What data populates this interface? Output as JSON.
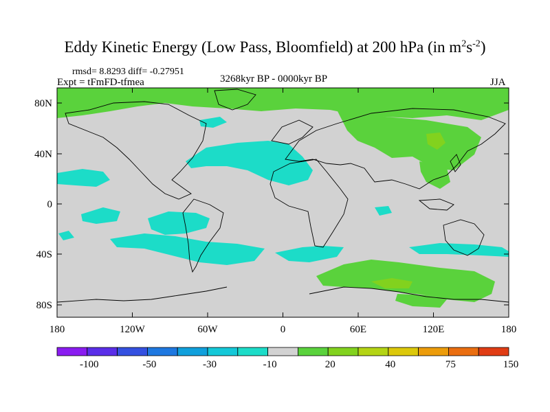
{
  "title": {
    "main": "Eddy Kinetic Energy (Low Pass, Bloomfield) at 200 hPa (in m",
    "sup1": "2",
    "s": "s",
    "sup2": "-2",
    "close": ")"
  },
  "stats": "rmsd= 8.8293 diff= -0.27951",
  "expt": "Expt = tFmFD-tfmea",
  "period": "3268kyr BP - 0000kyr BP",
  "season": "JJA",
  "lat_ticks": [
    "80N",
    "40N",
    "0",
    "40S",
    "80S"
  ],
  "lon_ticks": [
    "180",
    "120W",
    "60W",
    "0",
    "60E",
    "120E",
    "180"
  ],
  "colorbar": {
    "colors": [
      "#8a1cf0",
      "#5a2ee8",
      "#3450e0",
      "#1e78e0",
      "#10a0dc",
      "#14c8d8",
      "#1cdcc8",
      "#d2d2d2",
      "#5ad23c",
      "#82d21e",
      "#b4d414",
      "#dcc80a",
      "#ec9c0a",
      "#ea6e10",
      "#e03c14"
    ],
    "labels": [
      "-100",
      "-50",
      "-30",
      "-10",
      "20",
      "40",
      "75",
      "150"
    ]
  },
  "map_colors": {
    "background": "#d2d2d2",
    "cyan": "#1cdcc8",
    "green": "#5ad23c",
    "lightgreen": "#82d21e"
  }
}
